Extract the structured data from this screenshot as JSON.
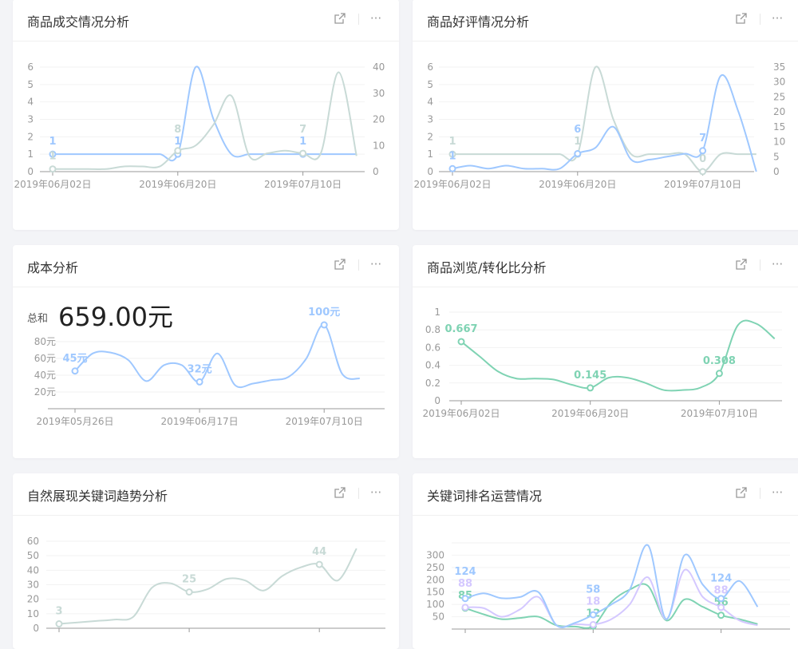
{
  "cards": [
    {
      "title": "商品成交情况分析"
    },
    {
      "title": "商品好评情况分析"
    },
    {
      "title": "成本分析",
      "total_label": "总和",
      "total_value": "659.00元"
    },
    {
      "title": "商品浏览/转化比分析"
    },
    {
      "title": "自然展现关键词趋势分析"
    },
    {
      "title": "关键词排名运营情况"
    }
  ],
  "icons": {
    "open": "external-link-icon",
    "more": "more-icon"
  },
  "icon_glyphs": {
    "more": "···"
  },
  "chart_data": [
    {
      "type": "line",
      "categories": [
        "2019年06月02日",
        "",
        "",
        "",
        "",
        "",
        "",
        "2019年06月20日",
        "",
        "",
        "",
        "",
        "",
        "",
        "2019年07月10日",
        "",
        "",
        ""
      ],
      "y_axis": {
        "min": 0,
        "max": 6,
        "ticks": [
          "0",
          "1",
          "2",
          "3",
          "4",
          "5",
          "6"
        ]
      },
      "y2_axis": {
        "min": 0,
        "max": 40,
        "ticks": [
          "0",
          "10",
          "20",
          "30",
          "40"
        ]
      },
      "series": [
        {
          "color": "#9fc8ff",
          "axis": "left",
          "values": [
            1,
            1,
            1,
            1,
            1,
            1,
            1,
            1,
            6,
            3,
            1,
            1,
            1,
            1,
            1,
            1,
            1,
            1
          ],
          "labeled_points": [
            0,
            7,
            14
          ]
        },
        {
          "color": "#c8dad6",
          "axis": "right",
          "values": [
            1,
            1,
            1,
            1,
            2,
            2,
            2,
            8,
            10,
            18,
            29,
            6,
            7,
            8,
            7,
            7,
            38,
            6
          ],
          "labeled_points": [
            0,
            7,
            14
          ]
        }
      ]
    },
    {
      "type": "line",
      "categories": [
        "2019年06月02日",
        "",
        "",
        "",
        "",
        "",
        "",
        "2019年06月20日",
        "",
        "",
        "",
        "",
        "",
        "",
        "2019年07月10日",
        "",
        "",
        ""
      ],
      "y_axis": {
        "min": 0,
        "max": 6,
        "ticks": [
          "0",
          "1",
          "2",
          "3",
          "4",
          "5",
          "6"
        ]
      },
      "y2_axis": {
        "min": 0,
        "max": 35,
        "ticks": [
          "0",
          "5",
          "10",
          "15",
          "20",
          "25",
          "30",
          "35"
        ]
      },
      "series": [
        {
          "color": "#c8dad6",
          "axis": "left",
          "values": [
            1,
            1,
            1,
            1,
            1,
            1,
            1,
            1,
            6,
            3,
            1,
            1,
            1,
            1,
            0,
            1,
            1,
            1
          ],
          "labeled_points": [
            0,
            7,
            14
          ]
        },
        {
          "color": "#9fc8ff",
          "axis": "right",
          "values": [
            1,
            2,
            1,
            2,
            1,
            1,
            1,
            6,
            8,
            15,
            4,
            4,
            5,
            6,
            7,
            32,
            20,
            0
          ],
          "labeled_points": [
            0,
            7,
            14
          ]
        }
      ]
    },
    {
      "type": "line",
      "categories": [
        "2019年05月26日",
        "",
        "",
        "",
        "",
        "",
        "",
        "2019年06月17日",
        "",
        "",
        "",
        "",
        "",
        "",
        "2019年07月10日",
        "",
        ""
      ],
      "y_axis": {
        "min": 0,
        "max": 100,
        "ticks": [
          "20元",
          "40元",
          "60元",
          "80元"
        ],
        "tick_values": [
          20,
          40,
          60,
          80
        ]
      },
      "value_suffix": "元",
      "series": [
        {
          "color": "#9fc8ff",
          "axis": "left",
          "values": [
            45,
            66,
            67,
            58,
            33,
            52,
            52,
            32,
            66,
            28,
            30,
            34,
            38,
            60,
            100,
            42,
            36
          ],
          "labeled_points": [
            0,
            7,
            14
          ]
        }
      ]
    },
    {
      "type": "line",
      "categories": [
        "2019年06月02日",
        "",
        "",
        "",
        "",
        "",
        "",
        "2019年06月20日",
        "",
        "",
        "",
        "",
        "",
        "",
        "2019年07月10日",
        "",
        "",
        ""
      ],
      "y_axis": {
        "min": 0,
        "max": 1,
        "ticks": [
          "0",
          "0.2",
          "0.4",
          "0.6",
          "0.8",
          "1"
        ]
      },
      "series": [
        {
          "color": "#7fd3b3",
          "axis": "left",
          "values": [
            0.667,
            0.5,
            0.33,
            0.25,
            0.25,
            0.24,
            0.18,
            0.145,
            0.26,
            0.26,
            0.2,
            0.12,
            0.12,
            0.15,
            0.308,
            0.85,
            0.87,
            0.7
          ],
          "labeled_points": [
            0,
            7,
            14
          ]
        }
      ]
    },
    {
      "type": "line",
      "categories": [
        "",
        "",
        "",
        "",
        "",
        "",
        "",
        "",
        "",
        "",
        "",
        "",
        "",
        "",
        "",
        "",
        ""
      ],
      "y_axis": {
        "min": 0,
        "max": 60,
        "ticks": [
          "0",
          "10",
          "20",
          "30",
          "40",
          "50",
          "60"
        ]
      },
      "series": [
        {
          "color": "#c8dad6",
          "axis": "left",
          "values": [
            3,
            4,
            5,
            6,
            8,
            28,
            31,
            25,
            27,
            34,
            33,
            26,
            36,
            42,
            44,
            33,
            55
          ],
          "labeled_points": [
            0,
            7,
            14
          ]
        }
      ]
    },
    {
      "type": "line",
      "categories": [
        "",
        "",
        "",
        "",
        "",
        "",
        "",
        "",
        "",
        "",
        "",
        "",
        "",
        "",
        "",
        "",
        ""
      ],
      "y_axis": {
        "min": 0,
        "max": 350,
        "ticks": [
          "50",
          "100",
          "150",
          "200",
          "250",
          "300"
        ],
        "tick_values": [
          50,
          100,
          150,
          200,
          250,
          300
        ]
      },
      "series": [
        {
          "color": "#7fd3b3",
          "axis": "left",
          "values": [
            85,
            60,
            40,
            45,
            50,
            15,
            10,
            12,
            110,
            160,
            175,
            35,
            120,
            90,
            56,
            40,
            20
          ],
          "labeled_points": [
            0,
            7,
            14
          ]
        },
        {
          "color": "#d4c8ff",
          "axis": "left",
          "values": [
            88,
            85,
            50,
            80,
            130,
            15,
            20,
            18,
            40,
            100,
            210,
            40,
            240,
            130,
            88,
            35,
            15
          ],
          "labeled_points": [
            0,
            7,
            14
          ]
        },
        {
          "color": "#9fc8ff",
          "axis": "left",
          "values": [
            124,
            145,
            125,
            130,
            150,
            15,
            25,
            58,
            100,
            160,
            340,
            40,
            300,
            180,
            124,
            195,
            90
          ],
          "labeled_points": [
            0,
            7,
            14
          ]
        }
      ]
    }
  ]
}
